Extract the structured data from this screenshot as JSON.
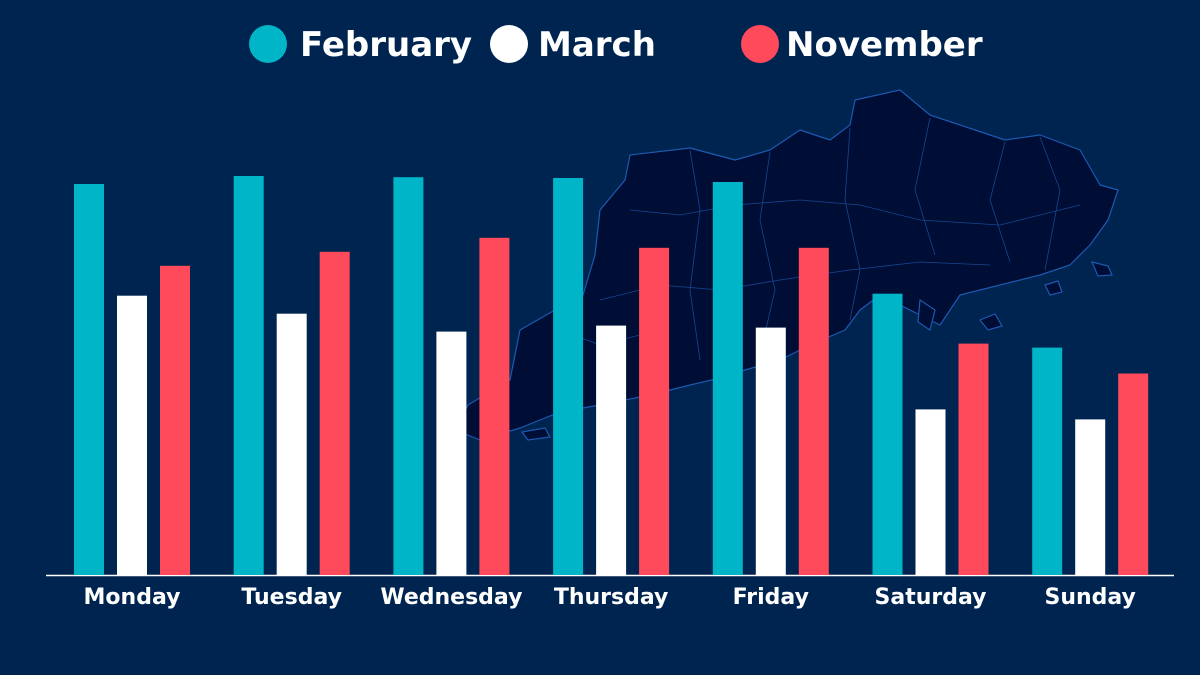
{
  "chart_data": {
    "type": "bar",
    "title": "",
    "xlabel": "",
    "ylabel": "",
    "categories": [
      "Monday",
      "Tuesday",
      "Wednesday",
      "Thursday",
      "Friday",
      "Saturday",
      "Sunday"
    ],
    "series": [
      {
        "name": "February",
        "color": "#00b5c8",
        "values": [
          98,
          100,
          99.7,
          99.5,
          98.5,
          70.5,
          57
        ]
      },
      {
        "name": "March",
        "color": "#ffffff",
        "values": [
          70,
          65.5,
          61,
          62.5,
          62,
          41.5,
          39
        ]
      },
      {
        "name": "November",
        "color": "#ff4a5c",
        "values": [
          77.5,
          81,
          84.5,
          82,
          82,
          58,
          50.5
        ]
      }
    ],
    "ylim": [
      0,
      100
    ],
    "grid": false,
    "legend_position": "top-center",
    "background_map": "region-map-silhouette"
  }
}
